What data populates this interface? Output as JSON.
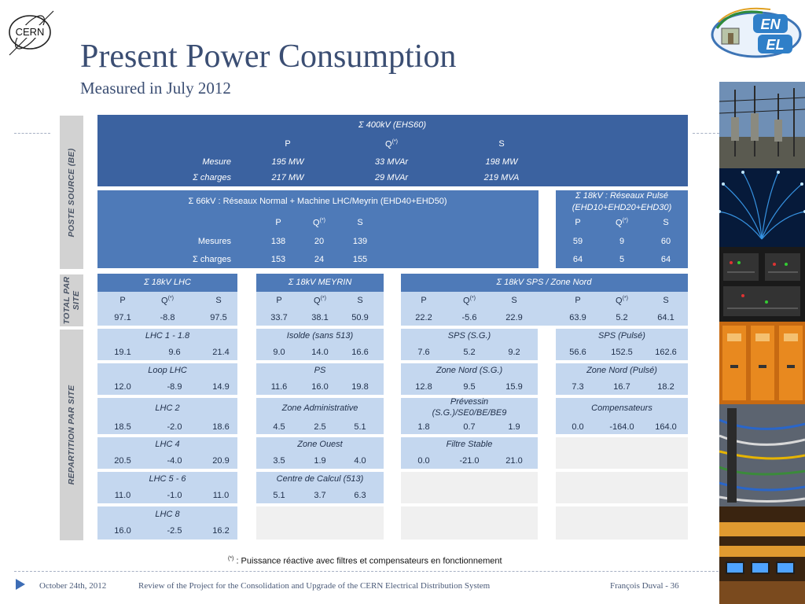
{
  "header": {
    "title": "Present Power Consumption",
    "subtitle": "Measured in July 2012",
    "cern_logo": "CERN",
    "enel_logo_top": "EN",
    "enel_logo_bottom": "EL"
  },
  "side_labels": {
    "poste_source": "POSTE SOURCE (BE)",
    "total_par_site_1": "TOTAL PAR",
    "total_par_site_2": "SITE",
    "repartition": "REPARTITION PAR SITE"
  },
  "sup_mark": "(*)",
  "block_400kv": {
    "title": "Σ 400kV (EHS60)",
    "col_p": "P",
    "col_q": "Q",
    "col_s": "S",
    "rows": [
      {
        "label": "Mesure",
        "p": "195 MW",
        "q": "33 MVAr",
        "s": "198 MW"
      },
      {
        "label": "Σ charges",
        "p": "217 MW",
        "q": "29 MVAr",
        "s": "219 MVA"
      }
    ]
  },
  "block_66kv": {
    "title": "Σ 66kV : Réseaux Normal + Machine LHC/Meyrin (EHD40+EHD50)",
    "col_p": "P",
    "col_q": "Q",
    "col_s": "S",
    "rows": [
      {
        "label": "Mesures",
        "p": "138",
        "q": "20",
        "s": "139"
      },
      {
        "label": "Σ charges",
        "p": "153",
        "q": "24",
        "s": "155"
      }
    ]
  },
  "block_18kv_pulse": {
    "title_1": "Σ 18kV : Réseaux Pulsé",
    "title_2": "(EHD10+EHD20+EHD30)",
    "col_p": "P",
    "col_q": "Q",
    "col_s": "S",
    "rows": [
      {
        "p": "59",
        "q": "9",
        "s": "60"
      },
      {
        "p": "64",
        "q": "5",
        "s": "64"
      }
    ]
  },
  "totals": [
    {
      "title": "Σ 18kV LHC",
      "p": "97.1",
      "q": "-8.8",
      "s": "97.5"
    },
    {
      "title": "Σ 18kV MEYRIN",
      "p": "33.7",
      "q": "38.1",
      "s": "50.9"
    },
    {
      "title": "Σ 18kV SPS / Zone Nord",
      "p": "22.2",
      "q": "-5.6",
      "s": "22.9",
      "p2": "63.9",
      "q2": "5.2",
      "s2": "64.1"
    }
  ],
  "totals_headers": {
    "p": "P",
    "q": "Q",
    "s": "S"
  },
  "lhc": [
    {
      "name": "LHC 1 - 1.8",
      "p": "19.1",
      "q": "9.6",
      "s": "21.4"
    },
    {
      "name": "Loop LHC",
      "p": "12.0",
      "q": "-8.9",
      "s": "14.9"
    },
    {
      "name": "LHC 2",
      "p": "18.5",
      "q": "-2.0",
      "s": "18.6"
    },
    {
      "name": "LHC 4",
      "p": "20.5",
      "q": "-4.0",
      "s": "20.9"
    },
    {
      "name": "LHC 5 - 6",
      "p": "11.0",
      "q": "-1.0",
      "s": "11.0"
    },
    {
      "name": "LHC 8",
      "p": "16.0",
      "q": "-2.5",
      "s": "16.2"
    }
  ],
  "meyrin": [
    {
      "name": "Isolde (sans 513)",
      "p": "9.0",
      "q": "14.0",
      "s": "16.6"
    },
    {
      "name": "PS",
      "p": "11.6",
      "q": "16.0",
      "s": "19.8"
    },
    {
      "name": "Zone Administrative",
      "p": "4.5",
      "q": "2.5",
      "s": "5.1"
    },
    {
      "name": "Zone Ouest",
      "p": "3.5",
      "q": "1.9",
      "s": "4.0"
    },
    {
      "name": "Centre de Calcul (513)",
      "p": "5.1",
      "q": "3.7",
      "s": "6.3"
    }
  ],
  "sps_sg": [
    {
      "name": "SPS (S.G.)",
      "p": "7.6",
      "q": "5.2",
      "s": "9.2"
    },
    {
      "name": "Zone Nord (S.G.)",
      "p": "12.8",
      "q": "9.5",
      "s": "15.9"
    },
    {
      "name": "Prévessin",
      "name2": "(S.G.)/SE0/BE/BE9",
      "p": "1.8",
      "q": "0.7",
      "s": "1.9"
    },
    {
      "name": "Filtre Stable",
      "p": "0.0",
      "q": "-21.0",
      "s": "21.0"
    }
  ],
  "sps_pulse": [
    {
      "name": "SPS (Pulsé)",
      "p": "56.6",
      "q": "152.5",
      "s": "162.6"
    },
    {
      "name": "Zone Nord (Pulsé)",
      "p": "7.3",
      "q": "16.7",
      "s": "18.2"
    },
    {
      "name": "Compensateurs",
      "p": "0.0",
      "q": "-164.0",
      "s": "164.0"
    }
  ],
  "footnote_mark": "(*)",
  "footnote": " : Puissance réactive avec filtres et compensateurs en fonctionnement",
  "footer": {
    "date": "October 24th, 2012",
    "review": "Review of the Project for the Consolidation and Upgrade of the  CERN Electrical Distribution System",
    "author_page": "François Duval - 36"
  },
  "photos": [
    "substation-photo",
    "fiber-optics-photo",
    "control-panel-photo",
    "switchgear-photo",
    "cables-photo",
    "control-room-photo"
  ],
  "colors": {
    "dark_blue": "#3b62a0",
    "mid_blue": "#4e7ab8",
    "light_blue": "#c4d7ef",
    "title_blue": "#3b4e73"
  }
}
